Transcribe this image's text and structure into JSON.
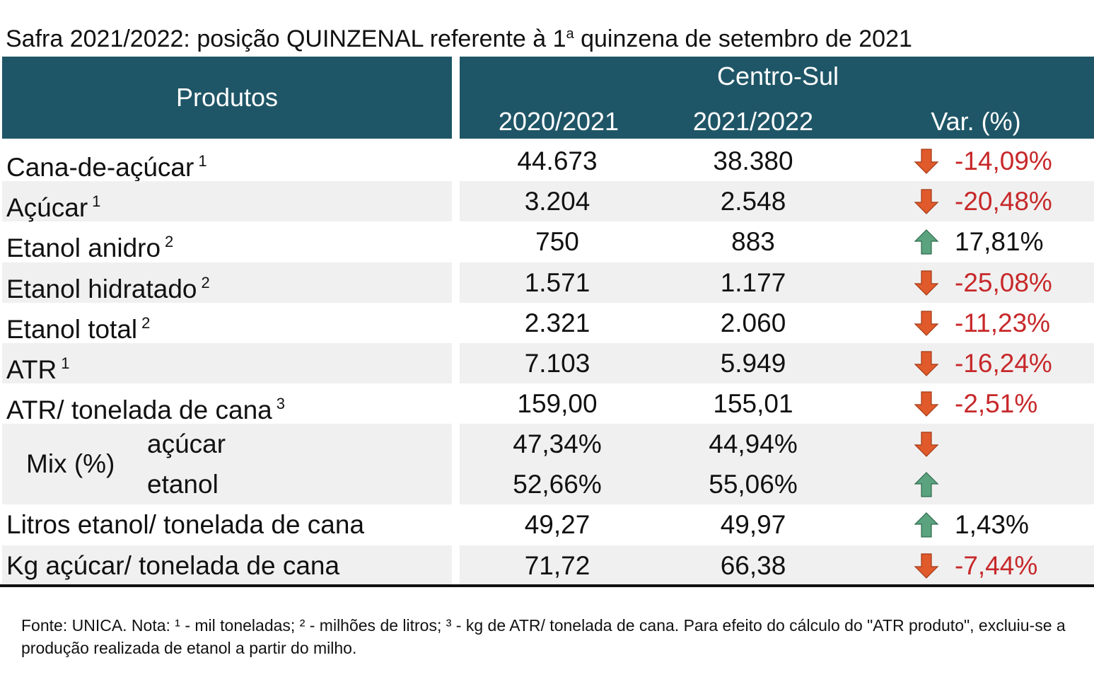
{
  "title": {
    "main": "Safra 2021/2022: posição QUINZENAL referente à 1",
    "sup": "a",
    "rest": " quinzena de setembro de 2021"
  },
  "header": {
    "produtos": "Produtos",
    "region": "Centro-Sul",
    "col1": "2020/2021",
    "col2": "2021/2022",
    "col3": "Var. (%)"
  },
  "colors": {
    "header_bg": "#1f5667",
    "negative": "#c7282a",
    "down_arrow": "#e05a2b",
    "up_arrow": "#5aa37e",
    "band": "#f0f0f0"
  },
  "rows": [
    {
      "label": "Cana-de-açúcar",
      "note": "1",
      "v2020": "44.673",
      "v2021": "38.380",
      "var": "-14,09%",
      "dir": "down"
    },
    {
      "label": "Açúcar",
      "note": "1",
      "v2020": "3.204",
      "v2021": "2.548",
      "var": "-20,48%",
      "dir": "down"
    },
    {
      "label": "Etanol anidro",
      "note": "2",
      "v2020": "750",
      "v2021": "883",
      "var": "17,81%",
      "dir": "up"
    },
    {
      "label": "Etanol hidratado",
      "note": "2",
      "v2020": "1.571",
      "v2021": "1.177",
      "var": "-25,08%",
      "dir": "down"
    },
    {
      "label": "Etanol total",
      "note": "2",
      "v2020": "2.321",
      "v2021": "2.060",
      "var": "-11,23%",
      "dir": "down"
    },
    {
      "label": "ATR",
      "note": "1",
      "v2020": "7.103",
      "v2021": "5.949",
      "var": "-16,24%",
      "dir": "down"
    },
    {
      "label": "ATR/ tonelada de cana",
      "note": "3",
      "v2020": "159,00",
      "v2021": "155,01",
      "var": "-2,51%",
      "dir": "down"
    }
  ],
  "mix": {
    "label": "Mix (%)",
    "acucar": {
      "label": "açúcar",
      "v2020": "47,34%",
      "v2021": "44,94%",
      "dir": "down"
    },
    "etanol": {
      "label": "etanol",
      "v2020": "52,66%",
      "v2021": "55,06%",
      "dir": "up"
    }
  },
  "extra_rows": [
    {
      "label": "Litros etanol/ tonelada de cana",
      "v2020": "49,27",
      "v2021": "49,97",
      "var": "1,43%",
      "dir": "up"
    },
    {
      "label": "Kg açúcar/ tonelada de cana",
      "v2020": "71,72",
      "v2021": "66,38",
      "var": "-7,44%",
      "dir": "down"
    }
  ],
  "footnote": "Fonte: UNICA. Nota: ¹ - mil toneladas; ² - milhões de litros; ³ - kg de ATR/ tonelada de cana. Para efeito do cálculo do \"ATR produto\", excluiu-se a produção realizada de etanol a partir do milho."
}
